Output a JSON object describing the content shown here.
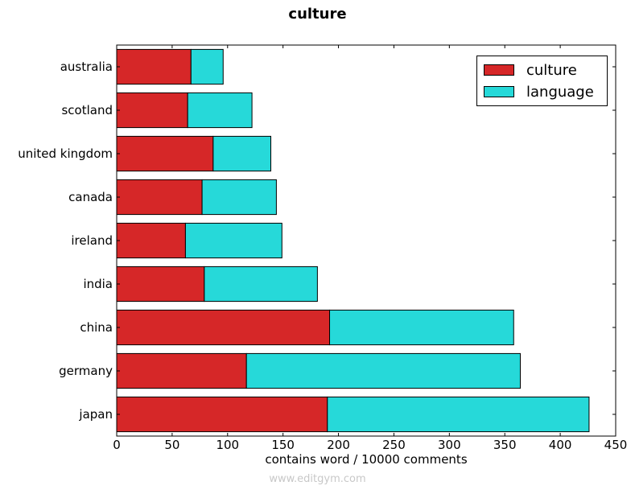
{
  "title": "culture",
  "watermark": "www.editgym.com",
  "chart_data": {
    "type": "bar",
    "orientation": "horizontal",
    "stacked": true,
    "title": "culture",
    "xlabel": "contains word / 10000 comments",
    "ylabel": "",
    "xlim": [
      0,
      450
    ],
    "xticks": [
      0,
      50,
      100,
      150,
      200,
      250,
      300,
      350,
      400,
      450
    ],
    "categories": [
      "australia",
      "scotland",
      "united kingdom",
      "canada",
      "ireland",
      "india",
      "china",
      "germany",
      "japan"
    ],
    "series": [
      {
        "name": "culture",
        "color": "#d62728",
        "values": [
          67,
          64,
          87,
          77,
          62,
          79,
          192,
          117,
          190
        ]
      },
      {
        "name": "language",
        "color": "#26d9d9",
        "values": [
          29,
          58,
          52,
          67,
          87,
          102,
          166,
          247,
          236
        ]
      }
    ],
    "grid": false,
    "legend_position": "top-right"
  }
}
